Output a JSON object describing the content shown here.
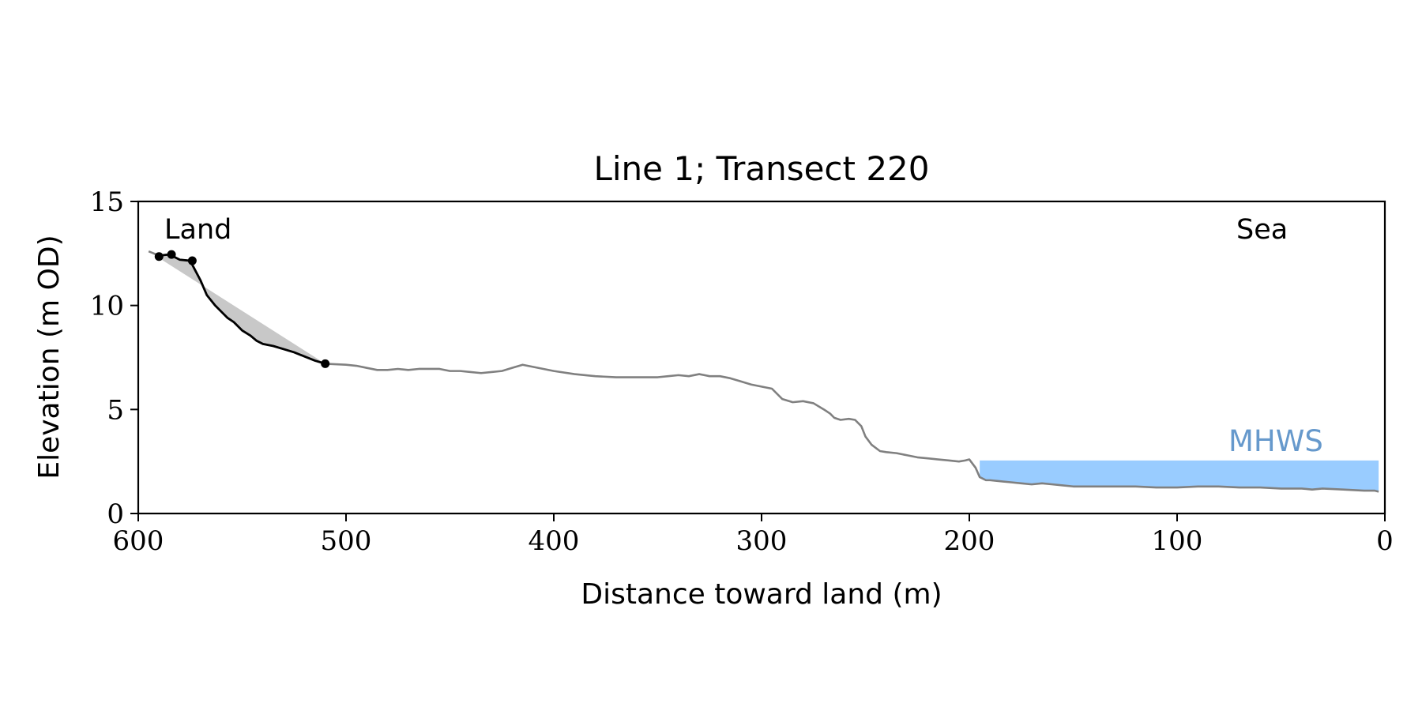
{
  "chart_data": {
    "type": "line",
    "title": "Line 1; Transect 220",
    "xlabel": "Distance toward land (m)",
    "ylabel": "Elevation (m OD)",
    "xlim": [
      600,
      0
    ],
    "ylim": [
      0,
      15
    ],
    "xticks": [
      600,
      500,
      400,
      300,
      200,
      100,
      0
    ],
    "yticks": [
      0,
      5,
      10,
      15
    ],
    "grid": false,
    "legend": "none",
    "annotations": {
      "land": "Land",
      "sea": "Sea",
      "mhws": "MHWS"
    },
    "mhws_level": 2.55,
    "mhws_x_range": [
      195,
      3
    ],
    "colors": {
      "profile": "#808080",
      "cliff": "#000000",
      "shade": "#c8c8c8",
      "mhws_fill": "#99ccff",
      "mhws_text": "#6699cc"
    },
    "series": [
      {
        "role": "profile",
        "x": [
          595,
          590,
          585,
          580,
          575,
          570,
          567,
          563,
          560,
          557,
          554,
          550,
          546,
          543,
          540,
          535,
          530,
          525,
          520,
          515,
          510,
          500,
          495,
          490,
          485,
          480,
          475,
          470,
          465,
          460,
          455,
          450,
          445,
          440,
          435,
          430,
          425,
          420,
          415,
          410,
          405,
          400,
          390,
          380,
          370,
          360,
          350,
          345,
          340,
          335,
          330,
          325,
          320,
          315,
          310,
          305,
          300,
          295,
          290,
          285,
          280,
          275,
          270,
          267,
          265,
          262,
          258,
          255,
          252,
          250,
          247,
          243,
          240,
          235,
          230,
          225,
          220,
          215,
          210,
          205,
          202,
          200,
          197,
          195,
          192,
          190,
          185,
          180,
          175,
          170,
          165,
          160,
          155,
          150,
          140,
          130,
          120,
          110,
          100,
          90,
          80,
          70,
          60,
          50,
          40,
          35,
          30,
          20,
          10,
          5,
          3
        ],
        "y": [
          12.6,
          12.4,
          12.45,
          12.2,
          12.15,
          11.2,
          10.5,
          10.0,
          9.7,
          9.4,
          9.2,
          8.8,
          8.55,
          8.3,
          8.15,
          8.05,
          7.9,
          7.75,
          7.55,
          7.35,
          7.2,
          7.15,
          7.1,
          7.0,
          6.9,
          6.9,
          6.95,
          6.9,
          6.95,
          6.95,
          6.95,
          6.85,
          6.85,
          6.8,
          6.75,
          6.8,
          6.85,
          7.0,
          7.15,
          7.05,
          6.95,
          6.85,
          6.7,
          6.6,
          6.55,
          6.55,
          6.55,
          6.6,
          6.65,
          6.6,
          6.7,
          6.6,
          6.6,
          6.5,
          6.35,
          6.2,
          6.1,
          6.0,
          5.5,
          5.35,
          5.4,
          5.3,
          5.0,
          4.8,
          4.6,
          4.5,
          4.55,
          4.5,
          4.2,
          3.7,
          3.3,
          3.0,
          2.95,
          2.9,
          2.8,
          2.7,
          2.65,
          2.6,
          2.55,
          2.5,
          2.55,
          2.6,
          2.2,
          1.75,
          1.6,
          1.6,
          1.55,
          1.5,
          1.45,
          1.4,
          1.45,
          1.4,
          1.35,
          1.3,
          1.3,
          1.3,
          1.3,
          1.25,
          1.25,
          1.3,
          1.3,
          1.25,
          1.25,
          1.2,
          1.2,
          1.15,
          1.2,
          1.15,
          1.1,
          1.1,
          1.05
        ]
      },
      {
        "role": "cliff",
        "x": [
          590,
          585,
          580,
          575,
          570,
          567,
          563,
          560,
          557,
          554,
          550,
          546,
          543,
          540,
          535,
          530,
          525,
          520,
          515,
          510
        ],
        "y": [
          12.4,
          12.45,
          12.2,
          12.15,
          11.2,
          10.5,
          10.0,
          9.7,
          9.4,
          9.2,
          8.8,
          8.55,
          8.3,
          8.15,
          8.05,
          7.9,
          7.75,
          7.55,
          7.35,
          7.2
        ]
      },
      {
        "role": "markers",
        "x": [
          590,
          584,
          574,
          510
        ],
        "y": [
          12.35,
          12.45,
          12.15,
          7.2
        ]
      },
      {
        "role": "shade-upper",
        "x": [
          595,
          510
        ],
        "y": [
          12.6,
          7.2
        ]
      }
    ]
  }
}
